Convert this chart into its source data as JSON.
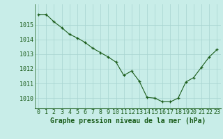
{
  "x": [
    0,
    1,
    2,
    3,
    4,
    5,
    6,
    7,
    8,
    9,
    10,
    11,
    12,
    13,
    14,
    15,
    16,
    17,
    18,
    19,
    20,
    21,
    22,
    23
  ],
  "y": [
    1015.7,
    1015.7,
    1015.2,
    1014.8,
    1014.35,
    1014.1,
    1013.8,
    1013.4,
    1013.1,
    1012.8,
    1012.45,
    1011.55,
    1011.85,
    1011.15,
    1010.05,
    1010.0,
    1009.75,
    1009.75,
    1010.0,
    1011.1,
    1011.4,
    1012.1,
    1012.8,
    1013.3
  ],
  "line_color": "#1a5c1a",
  "marker": "+",
  "marker_color": "#1a5c1a",
  "bg_color": "#c8ede8",
  "grid_color": "#a8d4d0",
  "xlabel": "Graphe pression niveau de la mer (hPa)",
  "xlabel_color": "#1a5c1a",
  "tick_color": "#1a5c1a",
  "ylim": [
    1009.3,
    1016.4
  ],
  "yticks": [
    1010,
    1011,
    1012,
    1013,
    1014,
    1015
  ],
  "xticks": [
    0,
    1,
    2,
    3,
    4,
    5,
    6,
    7,
    8,
    9,
    10,
    11,
    12,
    13,
    14,
    15,
    16,
    17,
    18,
    19,
    20,
    21,
    22,
    23
  ],
  "font_size_xlabel": 7.0,
  "font_size_ticks": 6.0
}
